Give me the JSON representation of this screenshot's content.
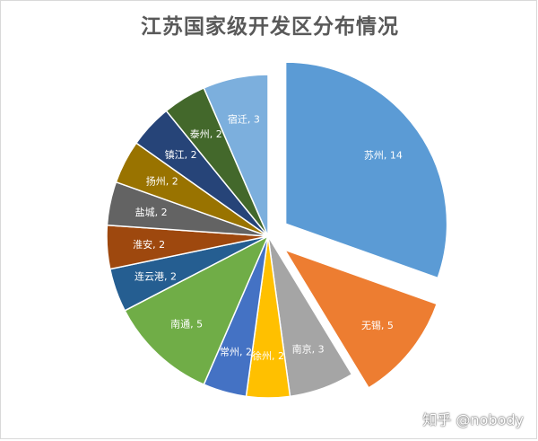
{
  "chart_data": {
    "type": "pie",
    "title": "江苏国家级开发区分布情况",
    "categories": [
      "苏州",
      "无锡",
      "南京",
      "徐州",
      "常州",
      "南通",
      "连云港",
      "淮安",
      "盐城",
      "扬州",
      "镇江",
      "泰州",
      "宿迁"
    ],
    "values": [
      14,
      5,
      3,
      2,
      2,
      5,
      2,
      2,
      2,
      2,
      2,
      2,
      3
    ],
    "colors": [
      "#5b9bd5",
      "#ed7d31",
      "#a5a5a5",
      "#ffc000",
      "#4472c4",
      "#70ad47",
      "#255e91",
      "#9e480e",
      "#636363",
      "#997300",
      "#264478",
      "#43682b",
      "#7cafdd"
    ],
    "exploded": [
      "苏州",
      "无锡"
    ],
    "data_labels": [
      "苏州, 14",
      "无锡, 5",
      "南京, 3",
      "徐州, 2",
      "常州, 2",
      "南通, 5",
      "连云港, 2",
      "淮安, 2",
      "盐城, 2",
      "扬州, 2",
      "镇江, 2",
      "泰州, 2",
      "宿迁, 3"
    ],
    "legend": "none"
  },
  "watermark": "知乎 @nobody"
}
